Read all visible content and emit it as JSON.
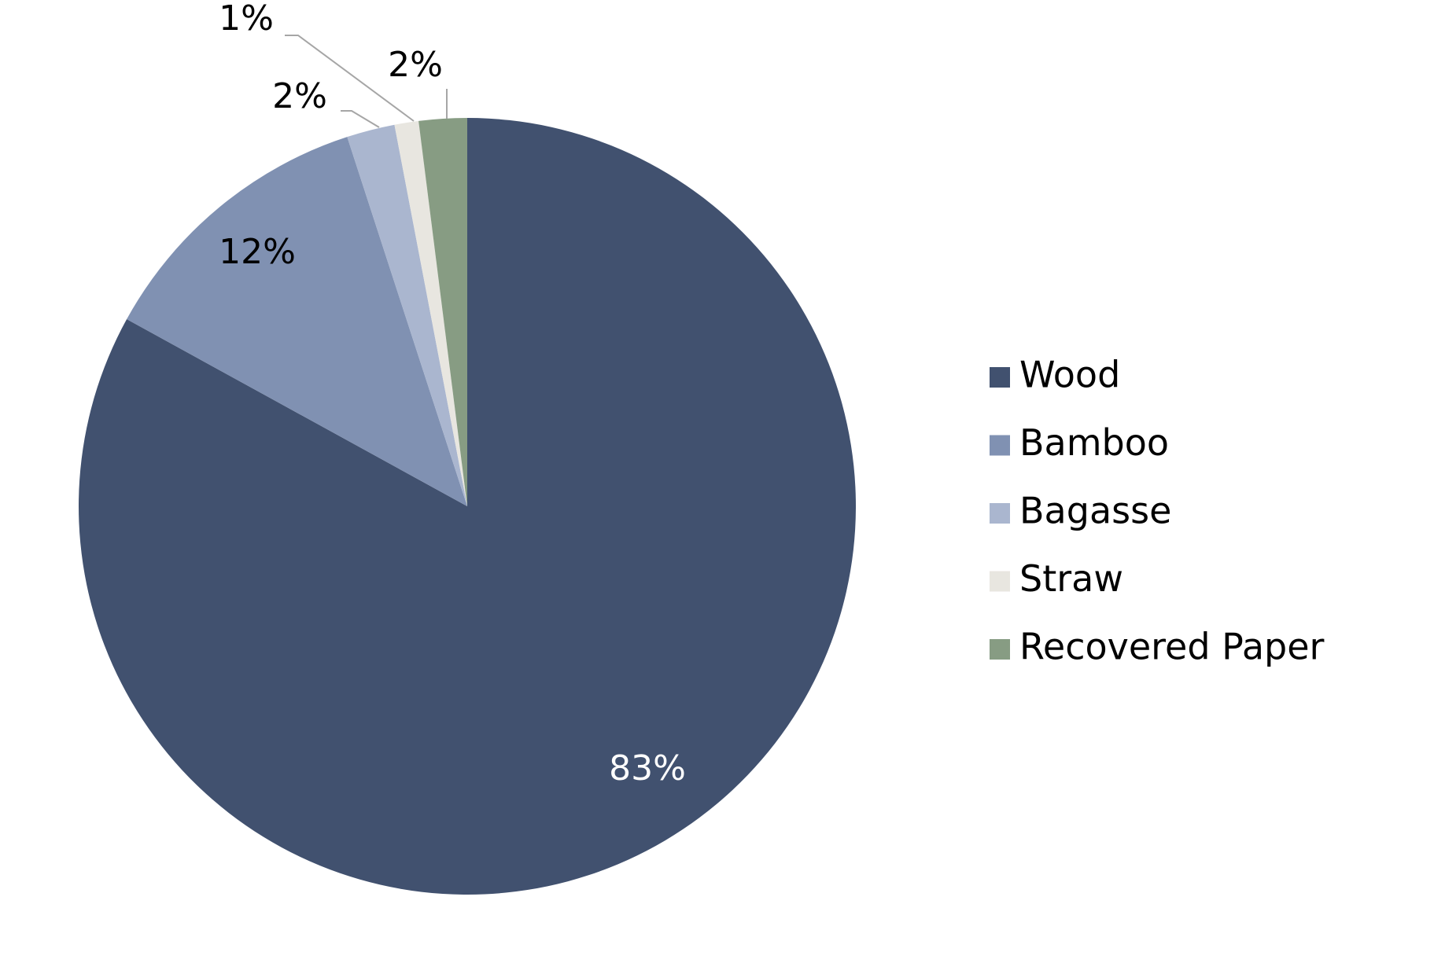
{
  "chart_data": {
    "type": "pie",
    "categories": [
      "Wood",
      "Bamboo",
      "Bagasse",
      "Straw",
      "Recovered Paper"
    ],
    "values": [
      83,
      12,
      2,
      1,
      2
    ],
    "value_labels": [
      "83%",
      "12%",
      "2%",
      "1%",
      "2%"
    ],
    "colors": [
      "#41516f",
      "#8091b2",
      "#aab6cf",
      "#e8e6e0",
      "#879c83"
    ],
    "legend": "right"
  }
}
